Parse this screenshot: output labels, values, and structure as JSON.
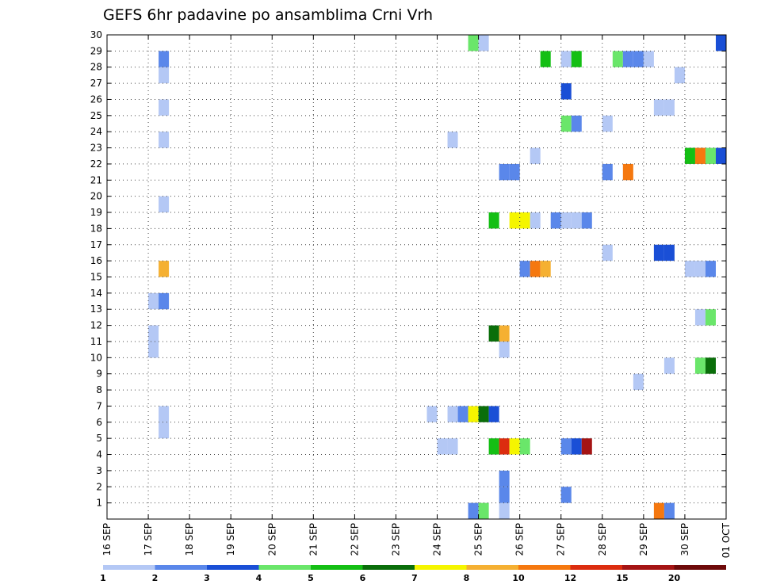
{
  "chart_data": {
    "type": "heatmap",
    "title": "GEFS 6hr padavine po ansamblima Crni Vrh",
    "xlabel": "",
    "ylabel": "",
    "x_tick_labels": [
      "16 SEP",
      "17 SEP",
      "18 SEP",
      "19 SEP",
      "20 SEP",
      "21 SEP",
      "22 SEP",
      "23 SEP",
      "24 SEP",
      "25 SEP",
      "26 SEP",
      "27 SEP",
      "28 SEP",
      "29 SEP",
      "30 SEP",
      "01 OCT"
    ],
    "xlim": [
      0,
      60
    ],
    "x_unit": "6-hour steps from 16 SEP 00Z",
    "ylim": [
      0,
      30
    ],
    "y_tick_labels": [
      "1",
      "2",
      "3",
      "4",
      "5",
      "6",
      "7",
      "8",
      "9",
      "10",
      "11",
      "12",
      "13",
      "14",
      "15",
      "16",
      "17",
      "18",
      "19",
      "20",
      "21",
      "22",
      "23",
      "24",
      "25",
      "26",
      "27",
      "28",
      "29",
      "30"
    ],
    "grid": true,
    "colorbar": {
      "labels": [
        "1",
        "2",
        "3",
        "4",
        "5",
        "6",
        "7",
        "8",
        "10",
        "12",
        "15",
        "20"
      ],
      "colors": [
        "#b4c8f5",
        "#5a87ea",
        "#1a4fd6",
        "#6ae66a",
        "#14bf14",
        "#0a6e0a",
        "#f5f500",
        "#f5b032",
        "#f5780f",
        "#dc2d0f",
        "#a51414",
        "#6e0a0a"
      ]
    },
    "cells": [
      {
        "member": 0,
        "step": 35,
        "level": 2
      },
      {
        "member": 0,
        "step": 36,
        "level": 4
      },
      {
        "member": 0,
        "step": 38,
        "level": 1
      },
      {
        "member": 0,
        "step": 53,
        "level": 9
      },
      {
        "member": 0,
        "step": 54,
        "level": 2
      },
      {
        "member": 1,
        "step": 38,
        "level": 2
      },
      {
        "member": 1,
        "step": 44,
        "level": 2
      },
      {
        "member": 2,
        "step": 38,
        "level": 2
      },
      {
        "member": 4,
        "step": 32,
        "level": 1
      },
      {
        "member": 4,
        "step": 33,
        "level": 1
      },
      {
        "member": 4,
        "step": 37,
        "level": 5
      },
      {
        "member": 4,
        "step": 38,
        "level": 10
      },
      {
        "member": 4,
        "step": 39,
        "level": 7
      },
      {
        "member": 4,
        "step": 40,
        "level": 4
      },
      {
        "member": 4,
        "step": 44,
        "level": 2
      },
      {
        "member": 4,
        "step": 45,
        "level": 3
      },
      {
        "member": 4,
        "step": 46,
        "level": 11
      },
      {
        "member": 5,
        "step": 5,
        "level": 1
      },
      {
        "member": 6,
        "step": 5,
        "level": 1
      },
      {
        "member": 6,
        "step": 31,
        "level": 1
      },
      {
        "member": 6,
        "step": 33,
        "level": 1
      },
      {
        "member": 6,
        "step": 34,
        "level": 2
      },
      {
        "member": 6,
        "step": 35,
        "level": 7
      },
      {
        "member": 6,
        "step": 36,
        "level": 6
      },
      {
        "member": 6,
        "step": 37,
        "level": 3
      },
      {
        "member": 8,
        "step": 51,
        "level": 1
      },
      {
        "member": 9,
        "step": 54,
        "level": 1
      },
      {
        "member": 9,
        "step": 57,
        "level": 4
      },
      {
        "member": 9,
        "step": 58,
        "level": 6
      },
      {
        "member": 10,
        "step": 4,
        "level": 1
      },
      {
        "member": 10,
        "step": 38,
        "level": 1
      },
      {
        "member": 11,
        "step": 4,
        "level": 1
      },
      {
        "member": 11,
        "step": 37,
        "level": 6
      },
      {
        "member": 11,
        "step": 38,
        "level": 8
      },
      {
        "member": 12,
        "step": 57,
        "level": 1
      },
      {
        "member": 12,
        "step": 58,
        "level": 4
      },
      {
        "member": 13,
        "step": 4,
        "level": 1
      },
      {
        "member": 13,
        "step": 5,
        "level": 2
      },
      {
        "member": 15,
        "step": 5,
        "level": 8
      },
      {
        "member": 15,
        "step": 40,
        "level": 2
      },
      {
        "member": 15,
        "step": 41,
        "level": 9
      },
      {
        "member": 15,
        "step": 42,
        "level": 8
      },
      {
        "member": 15,
        "step": 56,
        "level": 1
      },
      {
        "member": 15,
        "step": 57,
        "level": 1
      },
      {
        "member": 15,
        "step": 58,
        "level": 2
      },
      {
        "member": 16,
        "step": 48,
        "level": 1
      },
      {
        "member": 16,
        "step": 53,
        "level": 3
      },
      {
        "member": 16,
        "step": 54,
        "level": 3
      },
      {
        "member": 18,
        "step": 37,
        "level": 5
      },
      {
        "member": 18,
        "step": 39,
        "level": 7
      },
      {
        "member": 18,
        "step": 40,
        "level": 7
      },
      {
        "member": 18,
        "step": 41,
        "level": 1
      },
      {
        "member": 18,
        "step": 43,
        "level": 2
      },
      {
        "member": 18,
        "step": 44,
        "level": 1
      },
      {
        "member": 18,
        "step": 45,
        "level": 1
      },
      {
        "member": 18,
        "step": 46,
        "level": 2
      },
      {
        "member": 19,
        "step": 5,
        "level": 1
      },
      {
        "member": 21,
        "step": 38,
        "level": 2
      },
      {
        "member": 21,
        "step": 39,
        "level": 2
      },
      {
        "member": 21,
        "step": 48,
        "level": 2
      },
      {
        "member": 21,
        "step": 50,
        "level": 9
      },
      {
        "member": 22,
        "step": 41,
        "level": 1
      },
      {
        "member": 22,
        "step": 56,
        "level": 5
      },
      {
        "member": 22,
        "step": 57,
        "level": 9
      },
      {
        "member": 22,
        "step": 58,
        "level": 4
      },
      {
        "member": 22,
        "step": 59,
        "level": 3
      },
      {
        "member": 23,
        "step": 5,
        "level": 1
      },
      {
        "member": 23,
        "step": 33,
        "level": 1
      },
      {
        "member": 24,
        "step": 44,
        "level": 4
      },
      {
        "member": 24,
        "step": 45,
        "level": 2
      },
      {
        "member": 24,
        "step": 48,
        "level": 1
      },
      {
        "member": 25,
        "step": 5,
        "level": 1
      },
      {
        "member": 25,
        "step": 53,
        "level": 1
      },
      {
        "member": 25,
        "step": 54,
        "level": 1
      },
      {
        "member": 26,
        "step": 44,
        "level": 3
      },
      {
        "member": 27,
        "step": 5,
        "level": 1
      },
      {
        "member": 27,
        "step": 55,
        "level": 1
      },
      {
        "member": 28,
        "step": 5,
        "level": 2
      },
      {
        "member": 28,
        "step": 42,
        "level": 5
      },
      {
        "member": 28,
        "step": 44,
        "level": 1
      },
      {
        "member": 28,
        "step": 45,
        "level": 5
      },
      {
        "member": 28,
        "step": 49,
        "level": 4
      },
      {
        "member": 28,
        "step": 50,
        "level": 2
      },
      {
        "member": 28,
        "step": 51,
        "level": 2
      },
      {
        "member": 28,
        "step": 52,
        "level": 1
      },
      {
        "member": 29,
        "step": 35,
        "level": 4
      },
      {
        "member": 29,
        "step": 36,
        "level": 1
      },
      {
        "member": 29,
        "step": 59,
        "level": 3
      }
    ]
  }
}
